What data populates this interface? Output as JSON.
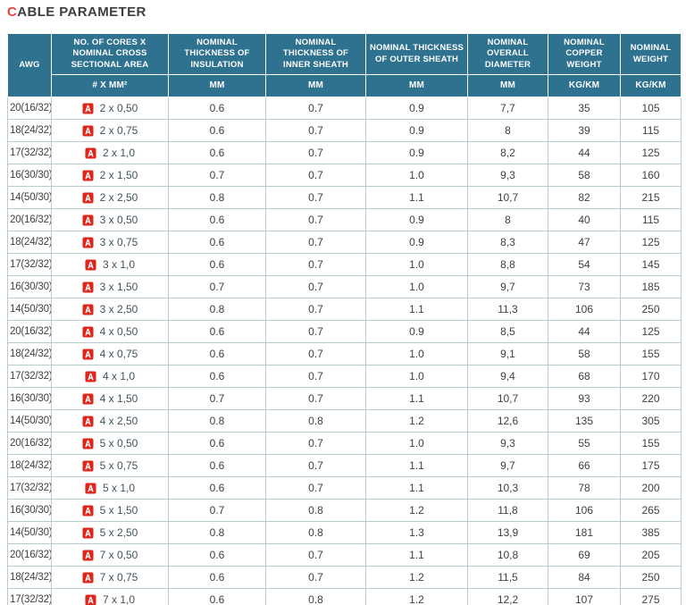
{
  "header": {
    "title_first": "C",
    "title_rest": "ABLE PARAMETER"
  },
  "icons": {
    "pdf_download": "pdf-icon"
  },
  "colors": {
    "header_bg": "#2e7290",
    "header_text": "#ffffff",
    "cell_border": "#b9cbd1",
    "body_text": "#3f4043",
    "cores_text": "#42525c",
    "title_accent": "#e8423b",
    "pdf_red": "#e1251b"
  },
  "chart_data": {
    "type": "table",
    "title": "CABLE PARAMETER",
    "columns": [
      {
        "label": "AWG",
        "unit": ""
      },
      {
        "label": "NO. OF CORES X NOMINAL CROSS SECTIONAL AREA",
        "unit": "# X MM²"
      },
      {
        "label": "NOMINAL THICKNESS OF INSULATION",
        "unit": "MM"
      },
      {
        "label": "NOMINAL THICKNESS OF INNER SHEATH",
        "unit": "MM"
      },
      {
        "label": "NOMINAL THICKNESS OF OUTER SHEATH",
        "unit": "MM"
      },
      {
        "label": "NOMINAL OVERALL DIAMETER",
        "unit": "MM"
      },
      {
        "label": "NOMINAL COPPER WEIGHT",
        "unit": "KG/KM"
      },
      {
        "label": "NOMINAL WEIGHT",
        "unit": "KG/KM"
      }
    ],
    "rows": [
      [
        "20(16/32)",
        "2 x 0,50",
        "0.6",
        "0.7",
        "0.9",
        "7,7",
        "35",
        "105"
      ],
      [
        "18(24/32)",
        "2 x 0,75",
        "0.6",
        "0.7",
        "0.9",
        "8",
        "39",
        "115"
      ],
      [
        "17(32/32)",
        "2 x 1,0",
        "0.6",
        "0.7",
        "0.9",
        "8,2",
        "44",
        "125"
      ],
      [
        "16(30/30)",
        "2 x 1,50",
        "0.7",
        "0.7",
        "1.0",
        "9,3",
        "58",
        "160"
      ],
      [
        "14(50/30)",
        "2 x 2,50",
        "0.8",
        "0.7",
        "1.1",
        "10,7",
        "82",
        "215"
      ],
      [
        "20(16/32)",
        "3 x 0,50",
        "0.6",
        "0.7",
        "0.9",
        "8",
        "40",
        "115"
      ],
      [
        "18(24/32)",
        "3 x 0,75",
        "0.6",
        "0.7",
        "0.9",
        "8,3",
        "47",
        "125"
      ],
      [
        "17(32/32)",
        "3 x 1,0",
        "0.6",
        "0.7",
        "1.0",
        "8,8",
        "54",
        "145"
      ],
      [
        "16(30/30)",
        "3 x 1,50",
        "0.7",
        "0.7",
        "1.0",
        "9,7",
        "73",
        "185"
      ],
      [
        "14(50/30)",
        "3 x 2,50",
        "0.8",
        "0.7",
        "1.1",
        "11,3",
        "106",
        "250"
      ],
      [
        "20(16/32)",
        "4 x 0,50",
        "0.6",
        "0.7",
        "0.9",
        "8,5",
        "44",
        "125"
      ],
      [
        "18(24/32)",
        "4 x 0,75",
        "0.6",
        "0.7",
        "1.0",
        "9,1",
        "58",
        "155"
      ],
      [
        "17(32/32)",
        "4 x 1,0",
        "0.6",
        "0.7",
        "1.0",
        "9,4",
        "68",
        "170"
      ],
      [
        "16(30/30)",
        "4 x 1,50",
        "0.7",
        "0.7",
        "1.1",
        "10,7",
        "93",
        "220"
      ],
      [
        "14(50/30)",
        "4 x 2,50",
        "0.8",
        "0.8",
        "1.2",
        "12,6",
        "135",
        "305"
      ],
      [
        "20(16/32)",
        "5 x 0,50",
        "0.6",
        "0.7",
        "1.0",
        "9,3",
        "55",
        "155"
      ],
      [
        "18(24/32)",
        "5 x 0,75",
        "0.6",
        "0.7",
        "1.1",
        "9,7",
        "66",
        "175"
      ],
      [
        "17(32/32)",
        "5 x 1,0",
        "0.6",
        "0.7",
        "1.1",
        "10,3",
        "78",
        "200"
      ],
      [
        "16(30/30)",
        "5 x 1,50",
        "0.7",
        "0.8",
        "1.2",
        "11,8",
        "106",
        "265"
      ],
      [
        "14(50/30)",
        "5 x 2,50",
        "0.8",
        "0.8",
        "1.3",
        "13,9",
        "181",
        "385"
      ],
      [
        "20(16/32)",
        "7 x 0,50",
        "0.6",
        "0.7",
        "1.1",
        "10,8",
        "69",
        "205"
      ],
      [
        "18(24/32)",
        "7 x 0,75",
        "0.6",
        "0.7",
        "1.2",
        "11,5",
        "84",
        "250"
      ],
      [
        "17(32/32)",
        "7 x 1,0",
        "0.6",
        "0.8",
        "1.2",
        "12,2",
        "107",
        "275"
      ]
    ]
  }
}
